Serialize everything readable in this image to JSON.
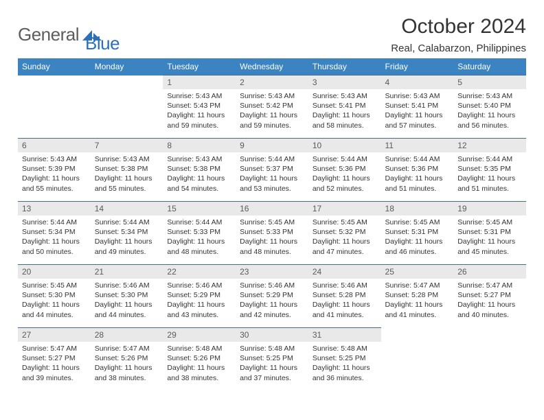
{
  "logo": {
    "word1": "General",
    "word2": "Blue"
  },
  "title": "October 2024",
  "location": "Real, Calabarzon, Philippines",
  "colors": {
    "header_bg": "#3b83c1",
    "header_text": "#ffffff",
    "row_border": "#426a99",
    "daynum_bg": "#e9e9e9",
    "logo_blue": "#2d70b6",
    "logo_gray": "#5d5d5d"
  },
  "daynames": [
    "Sunday",
    "Monday",
    "Tuesday",
    "Wednesday",
    "Thursday",
    "Friday",
    "Saturday"
  ],
  "weeks": [
    [
      {
        "n": "",
        "sr": "",
        "ss": "",
        "dl": ""
      },
      {
        "n": "",
        "sr": "",
        "ss": "",
        "dl": ""
      },
      {
        "n": "1",
        "sr": "5:43 AM",
        "ss": "5:43 PM",
        "dl": "11 hours and 59 minutes."
      },
      {
        "n": "2",
        "sr": "5:43 AM",
        "ss": "5:42 PM",
        "dl": "11 hours and 59 minutes."
      },
      {
        "n": "3",
        "sr": "5:43 AM",
        "ss": "5:41 PM",
        "dl": "11 hours and 58 minutes."
      },
      {
        "n": "4",
        "sr": "5:43 AM",
        "ss": "5:41 PM",
        "dl": "11 hours and 57 minutes."
      },
      {
        "n": "5",
        "sr": "5:43 AM",
        "ss": "5:40 PM",
        "dl": "11 hours and 56 minutes."
      }
    ],
    [
      {
        "n": "6",
        "sr": "5:43 AM",
        "ss": "5:39 PM",
        "dl": "11 hours and 55 minutes."
      },
      {
        "n": "7",
        "sr": "5:43 AM",
        "ss": "5:38 PM",
        "dl": "11 hours and 55 minutes."
      },
      {
        "n": "8",
        "sr": "5:43 AM",
        "ss": "5:38 PM",
        "dl": "11 hours and 54 minutes."
      },
      {
        "n": "9",
        "sr": "5:44 AM",
        "ss": "5:37 PM",
        "dl": "11 hours and 53 minutes."
      },
      {
        "n": "10",
        "sr": "5:44 AM",
        "ss": "5:36 PM",
        "dl": "11 hours and 52 minutes."
      },
      {
        "n": "11",
        "sr": "5:44 AM",
        "ss": "5:36 PM",
        "dl": "11 hours and 51 minutes."
      },
      {
        "n": "12",
        "sr": "5:44 AM",
        "ss": "5:35 PM",
        "dl": "11 hours and 51 minutes."
      }
    ],
    [
      {
        "n": "13",
        "sr": "5:44 AM",
        "ss": "5:34 PM",
        "dl": "11 hours and 50 minutes."
      },
      {
        "n": "14",
        "sr": "5:44 AM",
        "ss": "5:34 PM",
        "dl": "11 hours and 49 minutes."
      },
      {
        "n": "15",
        "sr": "5:44 AM",
        "ss": "5:33 PM",
        "dl": "11 hours and 48 minutes."
      },
      {
        "n": "16",
        "sr": "5:45 AM",
        "ss": "5:33 PM",
        "dl": "11 hours and 48 minutes."
      },
      {
        "n": "17",
        "sr": "5:45 AM",
        "ss": "5:32 PM",
        "dl": "11 hours and 47 minutes."
      },
      {
        "n": "18",
        "sr": "5:45 AM",
        "ss": "5:31 PM",
        "dl": "11 hours and 46 minutes."
      },
      {
        "n": "19",
        "sr": "5:45 AM",
        "ss": "5:31 PM",
        "dl": "11 hours and 45 minutes."
      }
    ],
    [
      {
        "n": "20",
        "sr": "5:45 AM",
        "ss": "5:30 PM",
        "dl": "11 hours and 44 minutes."
      },
      {
        "n": "21",
        "sr": "5:46 AM",
        "ss": "5:30 PM",
        "dl": "11 hours and 44 minutes."
      },
      {
        "n": "22",
        "sr": "5:46 AM",
        "ss": "5:29 PM",
        "dl": "11 hours and 43 minutes."
      },
      {
        "n": "23",
        "sr": "5:46 AM",
        "ss": "5:29 PM",
        "dl": "11 hours and 42 minutes."
      },
      {
        "n": "24",
        "sr": "5:46 AM",
        "ss": "5:28 PM",
        "dl": "11 hours and 41 minutes."
      },
      {
        "n": "25",
        "sr": "5:47 AM",
        "ss": "5:28 PM",
        "dl": "11 hours and 41 minutes."
      },
      {
        "n": "26",
        "sr": "5:47 AM",
        "ss": "5:27 PM",
        "dl": "11 hours and 40 minutes."
      }
    ],
    [
      {
        "n": "27",
        "sr": "5:47 AM",
        "ss": "5:27 PM",
        "dl": "11 hours and 39 minutes."
      },
      {
        "n": "28",
        "sr": "5:47 AM",
        "ss": "5:26 PM",
        "dl": "11 hours and 38 minutes."
      },
      {
        "n": "29",
        "sr": "5:48 AM",
        "ss": "5:26 PM",
        "dl": "11 hours and 38 minutes."
      },
      {
        "n": "30",
        "sr": "5:48 AM",
        "ss": "5:25 PM",
        "dl": "11 hours and 37 minutes."
      },
      {
        "n": "31",
        "sr": "5:48 AM",
        "ss": "5:25 PM",
        "dl": "11 hours and 36 minutes."
      },
      {
        "n": "",
        "sr": "",
        "ss": "",
        "dl": ""
      },
      {
        "n": "",
        "sr": "",
        "ss": "",
        "dl": ""
      }
    ]
  ],
  "labels": {
    "sunrise": "Sunrise:",
    "sunset": "Sunset:",
    "daylight": "Daylight:"
  }
}
